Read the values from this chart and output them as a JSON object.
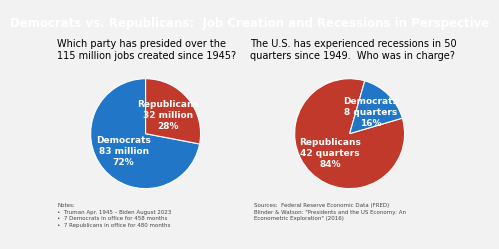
{
  "title": "Democrats vs. Republicans:  Job Creation and Recessions in Perspective",
  "title_bg": "#1f3864",
  "title_color": "white",
  "title_fontsize": 8.5,
  "bg_color": "#f2f2f2",
  "left_question": "Which party has presided over the\n115 million jobs created since 1945?",
  "right_question": "The U.S. has experienced recessions in 50\nquarters since 1949.  Who was in charge?",
  "pie1_values": [
    72,
    28
  ],
  "pie1_labels_inner": [
    "Democrats\n83 million\n72%",
    "Republicans\n32 million\n28%"
  ],
  "pie1_colors": [
    "#2176c7",
    "#c0392b"
  ],
  "pie1_startangle": 90,
  "pie2_values": [
    84,
    16
  ],
  "pie2_labels_inner": [
    "Republicans\n42 quarters\n84%",
    "Democrats\n8 quarters\n16%"
  ],
  "pie2_colors": [
    "#c0392b",
    "#2176c7"
  ],
  "pie2_startangle": 74,
  "notes_left": "Notes:\n•  Truman Apr. 1945 – Biden August 2023\n•  7 Democrats in office for 458 months\n•  7 Republicans in office for 480 months",
  "notes_right": "Sources:  Federal Reserve Economic Data (FRED)\nBlinder & Watson: \"Presidents and the US Economy: An\nEconometric Exploration\" (2016)",
  "notes_fontsize": 4.0,
  "label_fontsize": 6.5,
  "question_fontsize": 7.0
}
